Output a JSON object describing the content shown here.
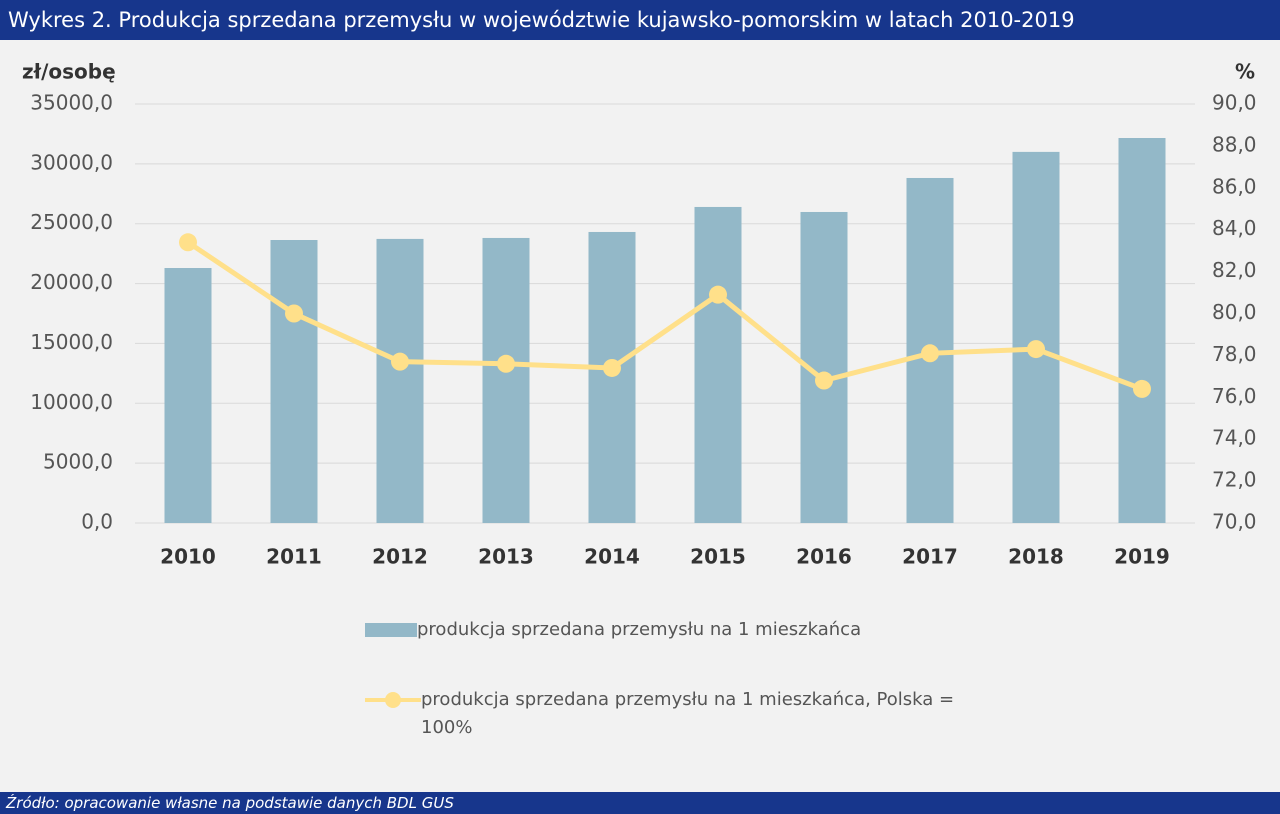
{
  "header": {
    "title": "Wykres 2. Produkcja sprzedana przemysłu w województwie kujawsko-pomorskim w latach 2010-2019"
  },
  "footer": {
    "source": "Źródło: opracowanie własne na podstawie danych BDL GUS"
  },
  "chart_data": {
    "type": "bar",
    "y_label": "zł/osobę",
    "y2_label": "%",
    "categories": [
      "2010",
      "2011",
      "2012",
      "2013",
      "2014",
      "2015",
      "2016",
      "2017",
      "2018",
      "2019"
    ],
    "series": [
      {
        "name": "produkcja sprzedana przemysłu na 1 mieszkańca",
        "type": "bar",
        "color": "#93b8c8",
        "values": [
          21300,
          23640,
          23730,
          23810,
          24310,
          26400,
          25980,
          28820,
          31000,
          32160
        ]
      },
      {
        "name": "produkcja sprzedana przemysłu na 1 mieszkańca, Polska = 100%",
        "type": "line",
        "axis": "y2",
        "color": "#ffe08a",
        "values": [
          83.4,
          80.0,
          77.7,
          77.6,
          77.4,
          80.9,
          76.8,
          78.1,
          78.3,
          76.4
        ]
      }
    ],
    "ylim": [
      0,
      35000
    ],
    "yticks": [
      {
        "value": 0,
        "label": "0,0"
      },
      {
        "value": 5000,
        "label": "5000,0"
      },
      {
        "value": 10000,
        "label": "10000,0"
      },
      {
        "value": 15000,
        "label": "15000,0"
      },
      {
        "value": 20000,
        "label": "20000,0"
      },
      {
        "value": 25000,
        "label": "25000,0"
      },
      {
        "value": 30000,
        "label": "30000,0"
      },
      {
        "value": 35000,
        "label": "35000,0"
      }
    ],
    "y2lim": [
      70,
      90
    ],
    "y2ticks": [
      {
        "value": 70,
        "label": "70,0"
      },
      {
        "value": 72,
        "label": "72,0"
      },
      {
        "value": 74,
        "label": "74,0"
      },
      {
        "value": 76,
        "label": "76,0"
      },
      {
        "value": 78,
        "label": "78,0"
      },
      {
        "value": 80,
        "label": "80,0"
      },
      {
        "value": 82,
        "label": "82,0"
      },
      {
        "value": 84,
        "label": "84,0"
      },
      {
        "value": 86,
        "label": "86,0"
      },
      {
        "value": 88,
        "label": "88,0"
      },
      {
        "value": 90,
        "label": "90,0"
      }
    ],
    "grid": true,
    "legend": "bottom"
  }
}
